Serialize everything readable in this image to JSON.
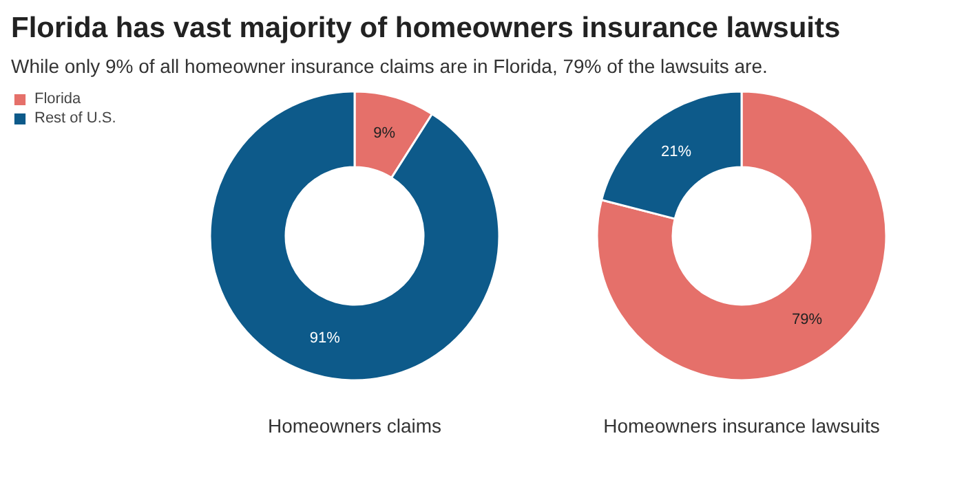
{
  "chart_data": [
    {
      "type": "donut",
      "title": "Florida has vast majority of homeowners insurance lawsuits",
      "subtitle": "While only 9% of all homeowner insurance claims are in Florida, 79% of the lawsuits are.",
      "xlabel": "Homeowners claims",
      "categories": [
        "Florida",
        "Rest of U.S."
      ],
      "values": [
        9,
        91
      ],
      "colors": [
        "#e5706a",
        "#0d5a8a"
      ],
      "value_labels": [
        "9%",
        "91%"
      ],
      "legend": "top left"
    },
    {
      "type": "donut",
      "xlabel": "Homeowners insurance lawsuits",
      "categories": [
        null,
        null
      ],
      "values": [
        79,
        21
      ],
      "colors": [
        "#e5706a",
        "#0d5a8a"
      ],
      "value_labels": [
        "79%",
        "21%"
      ]
    }
  ]
}
